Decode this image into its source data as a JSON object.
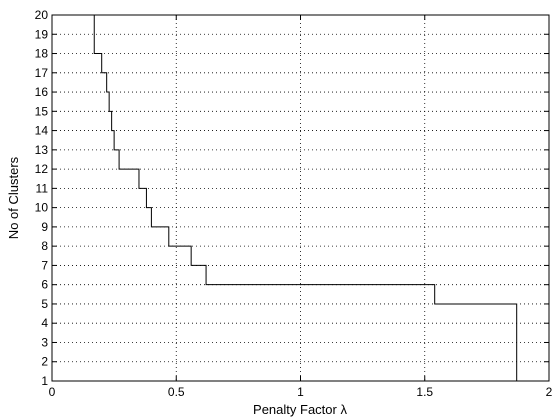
{
  "chart_data": {
    "type": "line",
    "title": "",
    "xlabel": "Penalty Factor λ",
    "ylabel": "No of Clusters",
    "xlim": [
      0,
      2
    ],
    "ylim": [
      1,
      20
    ],
    "xticks": [
      0,
      0.5,
      1,
      1.5,
      2
    ],
    "xtick_labels": [
      "0",
      "0.5",
      "1",
      "1.5",
      "2"
    ],
    "yticks": [
      1,
      2,
      3,
      4,
      5,
      6,
      7,
      8,
      9,
      10,
      11,
      12,
      13,
      14,
      15,
      16,
      17,
      18,
      19,
      20
    ],
    "ytick_labels": [
      "1",
      "2",
      "3",
      "4",
      "5",
      "6",
      "7",
      "8",
      "9",
      "10",
      "11",
      "12",
      "13",
      "14",
      "15",
      "16",
      "17",
      "18",
      "19",
      "20"
    ],
    "grid": true,
    "grid_style": "dotted",
    "step_line": true,
    "line_color": "#000000",
    "series": [
      {
        "x": [
          0.17,
          0.2,
          0.22,
          0.23,
          0.24,
          0.25,
          0.27,
          0.35,
          0.38,
          0.4,
          0.47,
          0.56,
          0.62,
          1.54,
          1.87
        ],
        "y": [
          20,
          18,
          17,
          16,
          15,
          14,
          13,
          12,
          11,
          10,
          9,
          8,
          7,
          6,
          5
        ]
      }
    ]
  }
}
